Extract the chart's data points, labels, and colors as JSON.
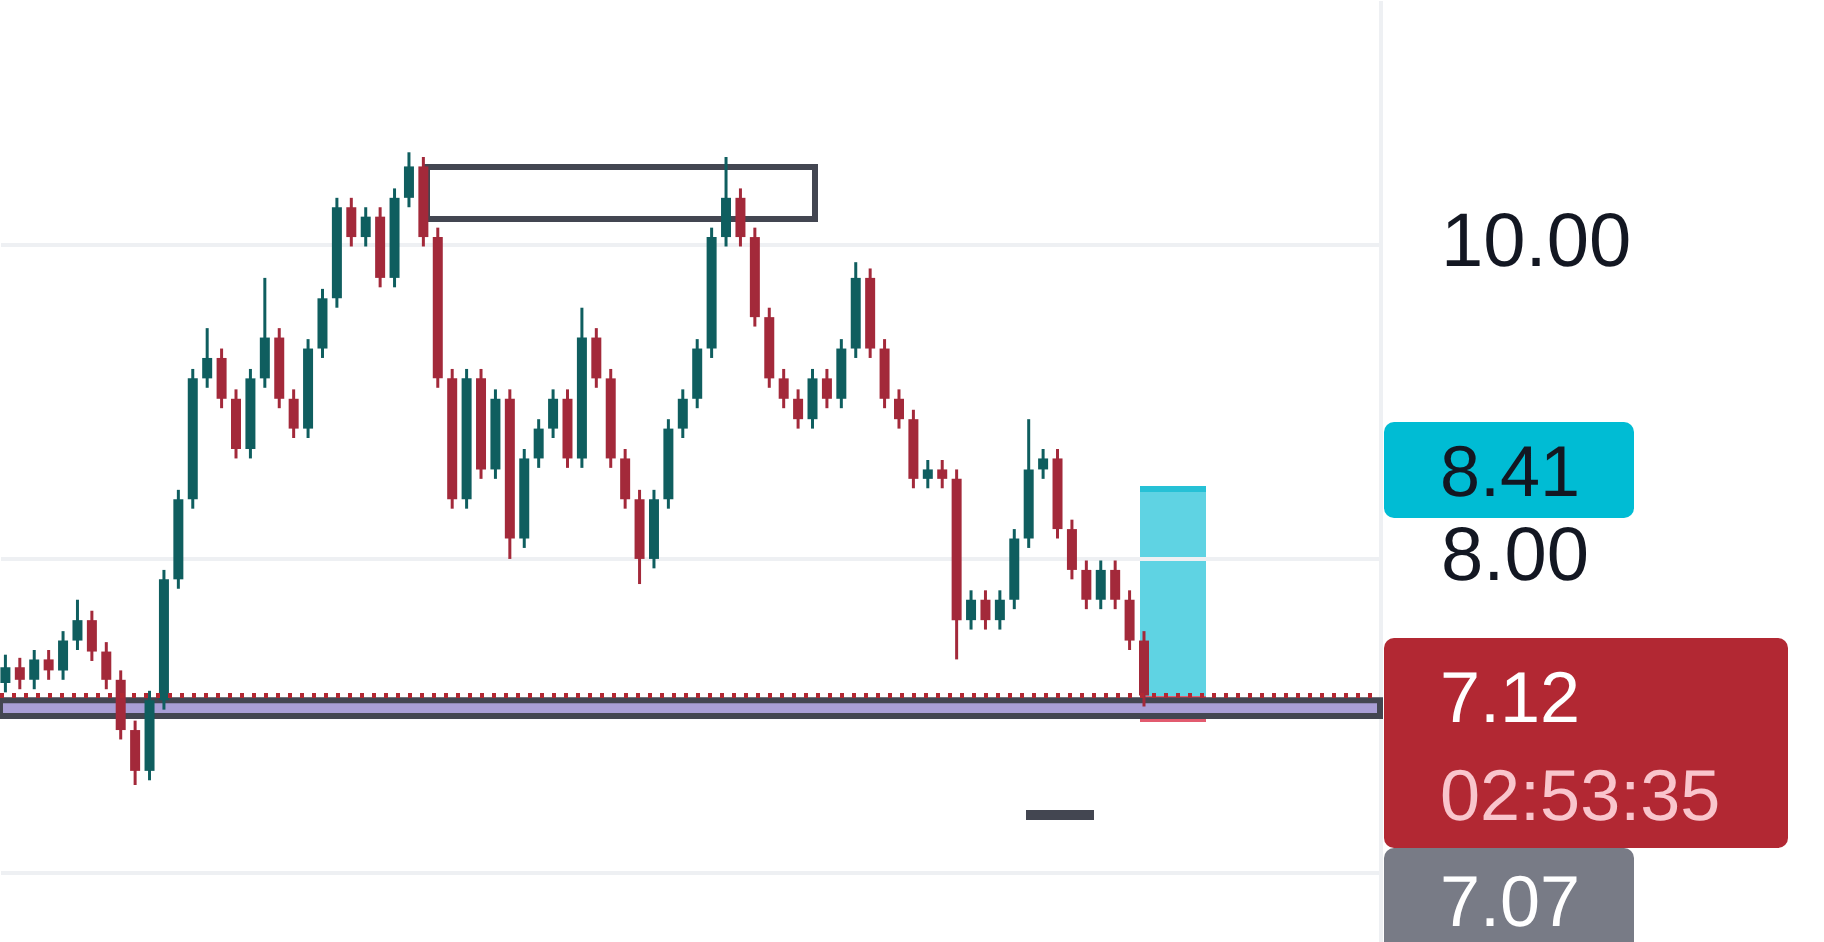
{
  "chart_data": {
    "type": "candlestick",
    "categories": [
      null,
      null,
      null,
      null,
      null,
      null,
      null,
      null,
      null,
      null,
      null,
      null,
      null,
      null,
      null,
      null,
      null,
      null,
      null,
      null,
      null,
      null,
      null,
      null,
      null,
      null,
      null,
      null,
      null,
      null,
      null,
      null,
      null,
      null,
      null,
      null,
      null,
      null,
      null,
      null,
      null,
      null,
      null,
      null,
      null,
      null,
      null,
      null,
      null,
      null,
      null,
      null,
      null,
      null,
      null,
      null,
      null,
      null,
      null,
      null,
      null,
      null,
      null,
      null,
      null,
      null,
      null,
      null,
      null,
      null,
      null,
      null,
      null,
      null,
      null,
      null,
      null,
      null,
      null,
      null,
      null,
      null,
      null,
      null,
      null,
      null,
      null,
      null,
      null,
      null,
      null,
      null,
      null,
      null,
      null,
      null
    ],
    "ohlc": [
      [
        7.2,
        7.38,
        7.14,
        7.3
      ],
      [
        7.3,
        7.36,
        7.16,
        7.22
      ],
      [
        7.22,
        7.41,
        7.16,
        7.35
      ],
      [
        7.35,
        7.41,
        7.22,
        7.28
      ],
      [
        7.28,
        7.53,
        7.22,
        7.47
      ],
      [
        7.47,
        7.73,
        7.41,
        7.6
      ],
      [
        7.6,
        7.66,
        7.34,
        7.4
      ],
      [
        7.4,
        7.46,
        7.16,
        7.22
      ],
      [
        7.22,
        7.28,
        6.84,
        6.9
      ],
      [
        6.9,
        6.96,
        6.55,
        6.64
      ],
      [
        6.64,
        7.15,
        6.58,
        7.09
      ],
      [
        7.09,
        7.92,
        7.03,
        7.86
      ],
      [
        7.86,
        8.43,
        7.8,
        8.37
      ],
      [
        8.37,
        9.2,
        8.31,
        9.14
      ],
      [
        9.14,
        9.46,
        9.08,
        9.27
      ],
      [
        9.27,
        9.33,
        8.95,
        9.01
      ],
      [
        9.01,
        9.07,
        8.63,
        8.69
      ],
      [
        8.69,
        9.2,
        8.63,
        9.14
      ],
      [
        9.14,
        9.78,
        9.08,
        9.4
      ],
      [
        9.4,
        9.46,
        8.95,
        9.01
      ],
      [
        9.01,
        9.07,
        8.76,
        8.82
      ],
      [
        8.82,
        9.39,
        8.76,
        9.33
      ],
      [
        9.33,
        9.71,
        9.27,
        9.65
      ],
      [
        9.65,
        10.29,
        9.59,
        10.23
      ],
      [
        10.23,
        10.29,
        9.98,
        10.04
      ],
      [
        10.04,
        10.23,
        9.98,
        10.17
      ],
      [
        10.17,
        10.23,
        9.72,
        9.78
      ],
      [
        9.78,
        10.35,
        9.72,
        10.29
      ],
      [
        10.29,
        10.58,
        10.23,
        10.49
      ],
      [
        10.49,
        10.55,
        9.98,
        10.04
      ],
      [
        10.04,
        10.1,
        9.08,
        9.14
      ],
      [
        9.14,
        9.2,
        8.31,
        8.37
      ],
      [
        8.37,
        9.2,
        8.31,
        9.14
      ],
      [
        9.14,
        9.2,
        8.5,
        8.56
      ],
      [
        8.56,
        9.07,
        8.5,
        9.01
      ],
      [
        9.01,
        9.07,
        7.99,
        8.12
      ],
      [
        8.12,
        8.69,
        8.06,
        8.63
      ],
      [
        8.63,
        8.88,
        8.57,
        8.82
      ],
      [
        8.82,
        9.07,
        8.76,
        9.01
      ],
      [
        9.01,
        9.07,
        8.57,
        8.63
      ],
      [
        8.63,
        9.59,
        8.57,
        9.4
      ],
      [
        9.4,
        9.46,
        9.08,
        9.14
      ],
      [
        9.14,
        9.2,
        8.57,
        8.63
      ],
      [
        8.63,
        8.69,
        8.31,
        8.37
      ],
      [
        8.37,
        8.43,
        7.83,
        7.99
      ],
      [
        7.99,
        8.43,
        7.93,
        8.37
      ],
      [
        8.37,
        8.88,
        8.31,
        8.82
      ],
      [
        8.82,
        9.07,
        8.76,
        9.01
      ],
      [
        9.01,
        9.39,
        8.95,
        9.33
      ],
      [
        9.33,
        10.1,
        9.27,
        10.04
      ],
      [
        10.04,
        10.55,
        9.98,
        10.29
      ],
      [
        10.29,
        10.35,
        9.98,
        10.04
      ],
      [
        10.04,
        10.1,
        9.47,
        9.53
      ],
      [
        9.53,
        9.59,
        9.08,
        9.14
      ],
      [
        9.14,
        9.2,
        8.95,
        9.01
      ],
      [
        9.01,
        9.07,
        8.82,
        8.88
      ],
      [
        8.88,
        9.2,
        8.82,
        9.14
      ],
      [
        9.14,
        9.2,
        8.95,
        9.01
      ],
      [
        9.01,
        9.39,
        8.95,
        9.33
      ],
      [
        9.33,
        9.88,
        9.27,
        9.78
      ],
      [
        9.78,
        9.84,
        9.27,
        9.33
      ],
      [
        9.33,
        9.39,
        8.95,
        9.01
      ],
      [
        9.01,
        9.07,
        8.82,
        8.88
      ],
      [
        8.88,
        8.94,
        8.44,
        8.5
      ],
      [
        8.5,
        8.62,
        8.44,
        8.56
      ],
      [
        8.56,
        8.62,
        8.44,
        8.5
      ],
      [
        8.5,
        8.56,
        7.35,
        7.6
      ],
      [
        7.6,
        7.79,
        7.54,
        7.73
      ],
      [
        7.73,
        7.79,
        7.54,
        7.6
      ],
      [
        7.6,
        7.79,
        7.54,
        7.73
      ],
      [
        7.73,
        8.18,
        7.67,
        8.12
      ],
      [
        8.12,
        8.88,
        8.06,
        8.56
      ],
      [
        8.56,
        8.69,
        8.5,
        8.63
      ],
      [
        8.63,
        8.69,
        8.12,
        8.18
      ],
      [
        8.18,
        8.24,
        7.86,
        7.92
      ],
      [
        7.92,
        7.98,
        7.67,
        7.73
      ],
      [
        7.73,
        7.98,
        7.67,
        7.92
      ],
      [
        7.92,
        7.98,
        7.67,
        7.73
      ],
      [
        7.73,
        7.79,
        7.41,
        7.47
      ],
      [
        7.47,
        7.53,
        7.05,
        7.12
      ],
      null,
      null,
      null,
      null,
      null,
      null,
      null,
      null,
      null,
      null,
      null,
      null,
      null,
      null,
      null,
      null
    ],
    "colors": [
      "#0f5e5f",
      "#a3293a",
      "#0f5e5f",
      "#a3293a",
      "#0f5e5f",
      "#0f5e5f",
      "#a3293a",
      "#a3293a",
      "#a3293a",
      "#a3293a",
      "#0f5e5f",
      "#0f5e5f",
      "#0f5e5f",
      "#0f5e5f",
      "#0f5e5f",
      "#a3293a",
      "#a3293a",
      "#0f5e5f",
      "#0f5e5f",
      "#a3293a",
      "#a3293a",
      "#0f5e5f",
      "#0f5e5f",
      "#0f5e5f",
      "#a3293a",
      "#0f5e5f",
      "#a3293a",
      "#0f5e5f",
      "#0f5e5f",
      "#a3293a",
      "#a3293a",
      "#a3293a",
      "#0f5e5f",
      "#a3293a",
      "#0f5e5f",
      "#a3293a",
      "#0f5e5f",
      "#0f5e5f",
      "#0f5e5f",
      "#a3293a",
      "#0f5e5f",
      "#a3293a",
      "#a3293a",
      "#a3293a",
      "#a3293a",
      "#0f5e5f",
      "#0f5e5f",
      "#0f5e5f",
      "#0f5e5f",
      "#0f5e5f",
      "#0f5e5f",
      "#a3293a",
      "#a3293a",
      "#a3293a",
      "#a3293a",
      "#a3293a",
      "#0f5e5f",
      "#a3293a",
      "#0f5e5f",
      "#0f5e5f",
      "#a3293a",
      "#a3293a",
      "#a3293a",
      "#a3293a",
      "#0f5e5f",
      "#a3293a",
      "#a3293a",
      "#0f5e5f",
      "#a3293a",
      "#0f5e5f",
      "#0f5e5f",
      "#0f5e5f",
      "#0f5e5f",
      "#a3293a",
      "#a3293a",
      "#a3293a",
      "#0f5e5f",
      "#a3293a",
      "#a3293a",
      "#a3293a",
      null,
      null,
      null,
      null,
      null,
      null,
      null,
      null,
      null,
      null,
      null,
      null,
      null,
      null,
      null,
      null
    ],
    "ylim": [
      5.55,
      11.55
    ],
    "yticks": [
      {
        "value": 10,
        "label": "10.00"
      },
      {
        "value": 8,
        "label": "8.00"
      },
      {
        "value": 6,
        "label": null
      }
    ],
    "grid": "y",
    "tick_labels": "y",
    "ref_lines": [
      {
        "axis": "y",
        "value": 7.12,
        "label": "7.12",
        "color": "#b22833",
        "line_style": "dotted"
      }
    ],
    "bands": [
      {
        "axis": "y",
        "from": 6.99,
        "to": 7.09,
        "color": "#a99fd6"
      }
    ],
    "annotations": [
      "8.41",
      "02:53:35",
      "7.07"
    ]
  }
}
